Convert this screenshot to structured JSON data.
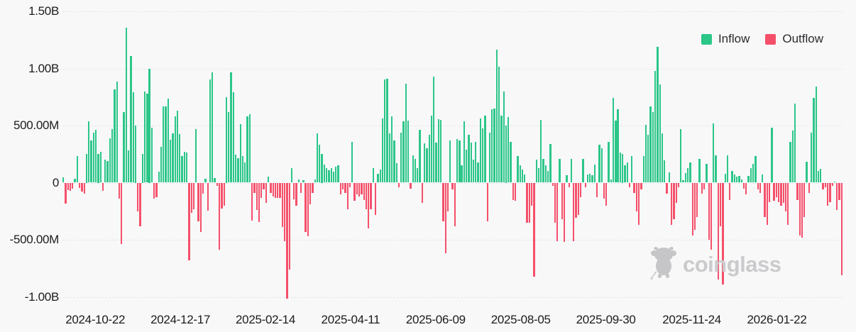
{
  "chart_data": {
    "type": "bar",
    "title": "",
    "value_scale": "millions",
    "legend": [
      {
        "label": "Inflow",
        "color": "#2cc689"
      },
      {
        "label": "Outflow",
        "color": "#f5506a"
      }
    ],
    "y_axis": {
      "ticks": [
        {
          "label": "1.50B",
          "value": 1500
        },
        {
          "label": "1.00B",
          "value": 1000
        },
        {
          "label": "500.00M",
          "value": 500
        },
        {
          "label": "0",
          "value": 0
        },
        {
          "label": "-500.00M",
          "value": -500
        },
        {
          "label": "-1.00B",
          "value": -1000
        }
      ],
      "ylim": [
        -1100,
        1550
      ],
      "grid": "dashed"
    },
    "x_axis": {
      "labels": [
        "2024-10-22",
        "2024-12-17",
        "2025-02-14",
        "2025-04-11",
        "2025-06-09",
        "2025-08-05",
        "2025-09-30",
        "2025-11-24",
        "2026-01-22"
      ],
      "fractions": [
        0.042,
        0.151,
        0.26,
        0.369,
        0.478,
        0.587,
        0.696,
        0.806,
        0.915
      ]
    },
    "values": [
      45,
      -185,
      -65,
      -70,
      -55,
      35,
      230,
      -45,
      -80,
      -95,
      250,
      540,
      370,
      435,
      465,
      250,
      270,
      -70,
      200,
      190,
      390,
      470,
      815,
      885,
      -140,
      -535,
      620,
      1360,
      280,
      1110,
      790,
      500,
      -250,
      -385,
      250,
      800,
      780,
      1000,
      480,
      -140,
      -130,
      95,
      315,
      665,
      670,
      735,
      377,
      432,
      583,
      630,
      428,
      232,
      273,
      263,
      -680,
      -265,
      -236,
      470,
      -337,
      -430,
      -99,
      35,
      -244,
      905,
      965,
      40,
      -27,
      -586,
      -224,
      -203,
      750,
      620,
      965,
      790,
      245,
      215,
      510,
      235,
      175,
      580,
      600,
      -330,
      -90,
      -240,
      -345,
      -135,
      -60,
      -180,
      55,
      -90,
      -120,
      -135,
      -135,
      -135,
      -390,
      -510,
      -1015,
      -760,
      130,
      -145,
      -200,
      30,
      -90,
      20,
      -430,
      -470,
      -190,
      -90,
      25,
      430,
      330,
      250,
      160,
      130,
      110,
      130,
      95,
      140,
      150,
      -100,
      -60,
      -90,
      -230,
      -40,
      360,
      -160,
      -100,
      -120,
      -100,
      -150,
      -230,
      -400,
      -230,
      130,
      -280,
      80,
      115,
      560,
      905,
      910,
      430,
      580,
      370,
      170,
      -40,
      435,
      540,
      865,
      545,
      -50,
      240,
      205,
      130,
      460,
      -180,
      345,
      300,
      420,
      590,
      930,
      350,
      555,
      550,
      -340,
      -620,
      -250,
      370,
      -60,
      -380,
      380,
      370,
      150,
      540,
      290,
      420,
      350,
      200,
      360,
      180,
      565,
      475,
      585,
      -340,
      440,
      645,
      650,
      1165,
      1015,
      590,
      800,
      500,
      575,
      360,
      -150,
      -160,
      230,
      155,
      115,
      70,
      -350,
      -350,
      -200,
      -820,
      200,
      130,
      550,
      210,
      155,
      100,
      340,
      -30,
      -350,
      -510,
      205,
      -320,
      -520,
      65,
      -40,
      210,
      -510,
      -310,
      -280,
      -130,
      210,
      -40,
      70,
      75,
      65,
      160,
      -130,
      330,
      300,
      -140,
      -200,
      360,
      30,
      740,
      545,
      640,
      265,
      250,
      155,
      180,
      -40,
      230,
      -90,
      -250,
      -370,
      -60,
      232,
      505,
      422,
      667,
      615,
      981,
      1190,
      863,
      429,
      195,
      -95,
      91,
      -370,
      -320,
      -180,
      -40,
      470,
      20,
      85,
      130,
      175,
      -460,
      -410,
      -300,
      205,
      -95,
      -60,
      165,
      -500,
      -590,
      520,
      240,
      -850,
      -380,
      -890,
      75,
      240,
      -150,
      100,
      70,
      50,
      60,
      30,
      -50,
      -100,
      60,
      130,
      165,
      230,
      -60,
      -90,
      70,
      -300,
      -370,
      -170,
      480,
      -160,
      -130,
      -170,
      -200,
      -180,
      -250,
      -370,
      360,
      455,
      690,
      -150,
      -460,
      -480,
      -300,
      185,
      -90,
      440,
      745,
      840,
      105,
      120,
      -60,
      -40,
      -200,
      -170,
      -30,
      10,
      -240,
      -155,
      -810
    ],
    "watermark": "coinglass"
  }
}
